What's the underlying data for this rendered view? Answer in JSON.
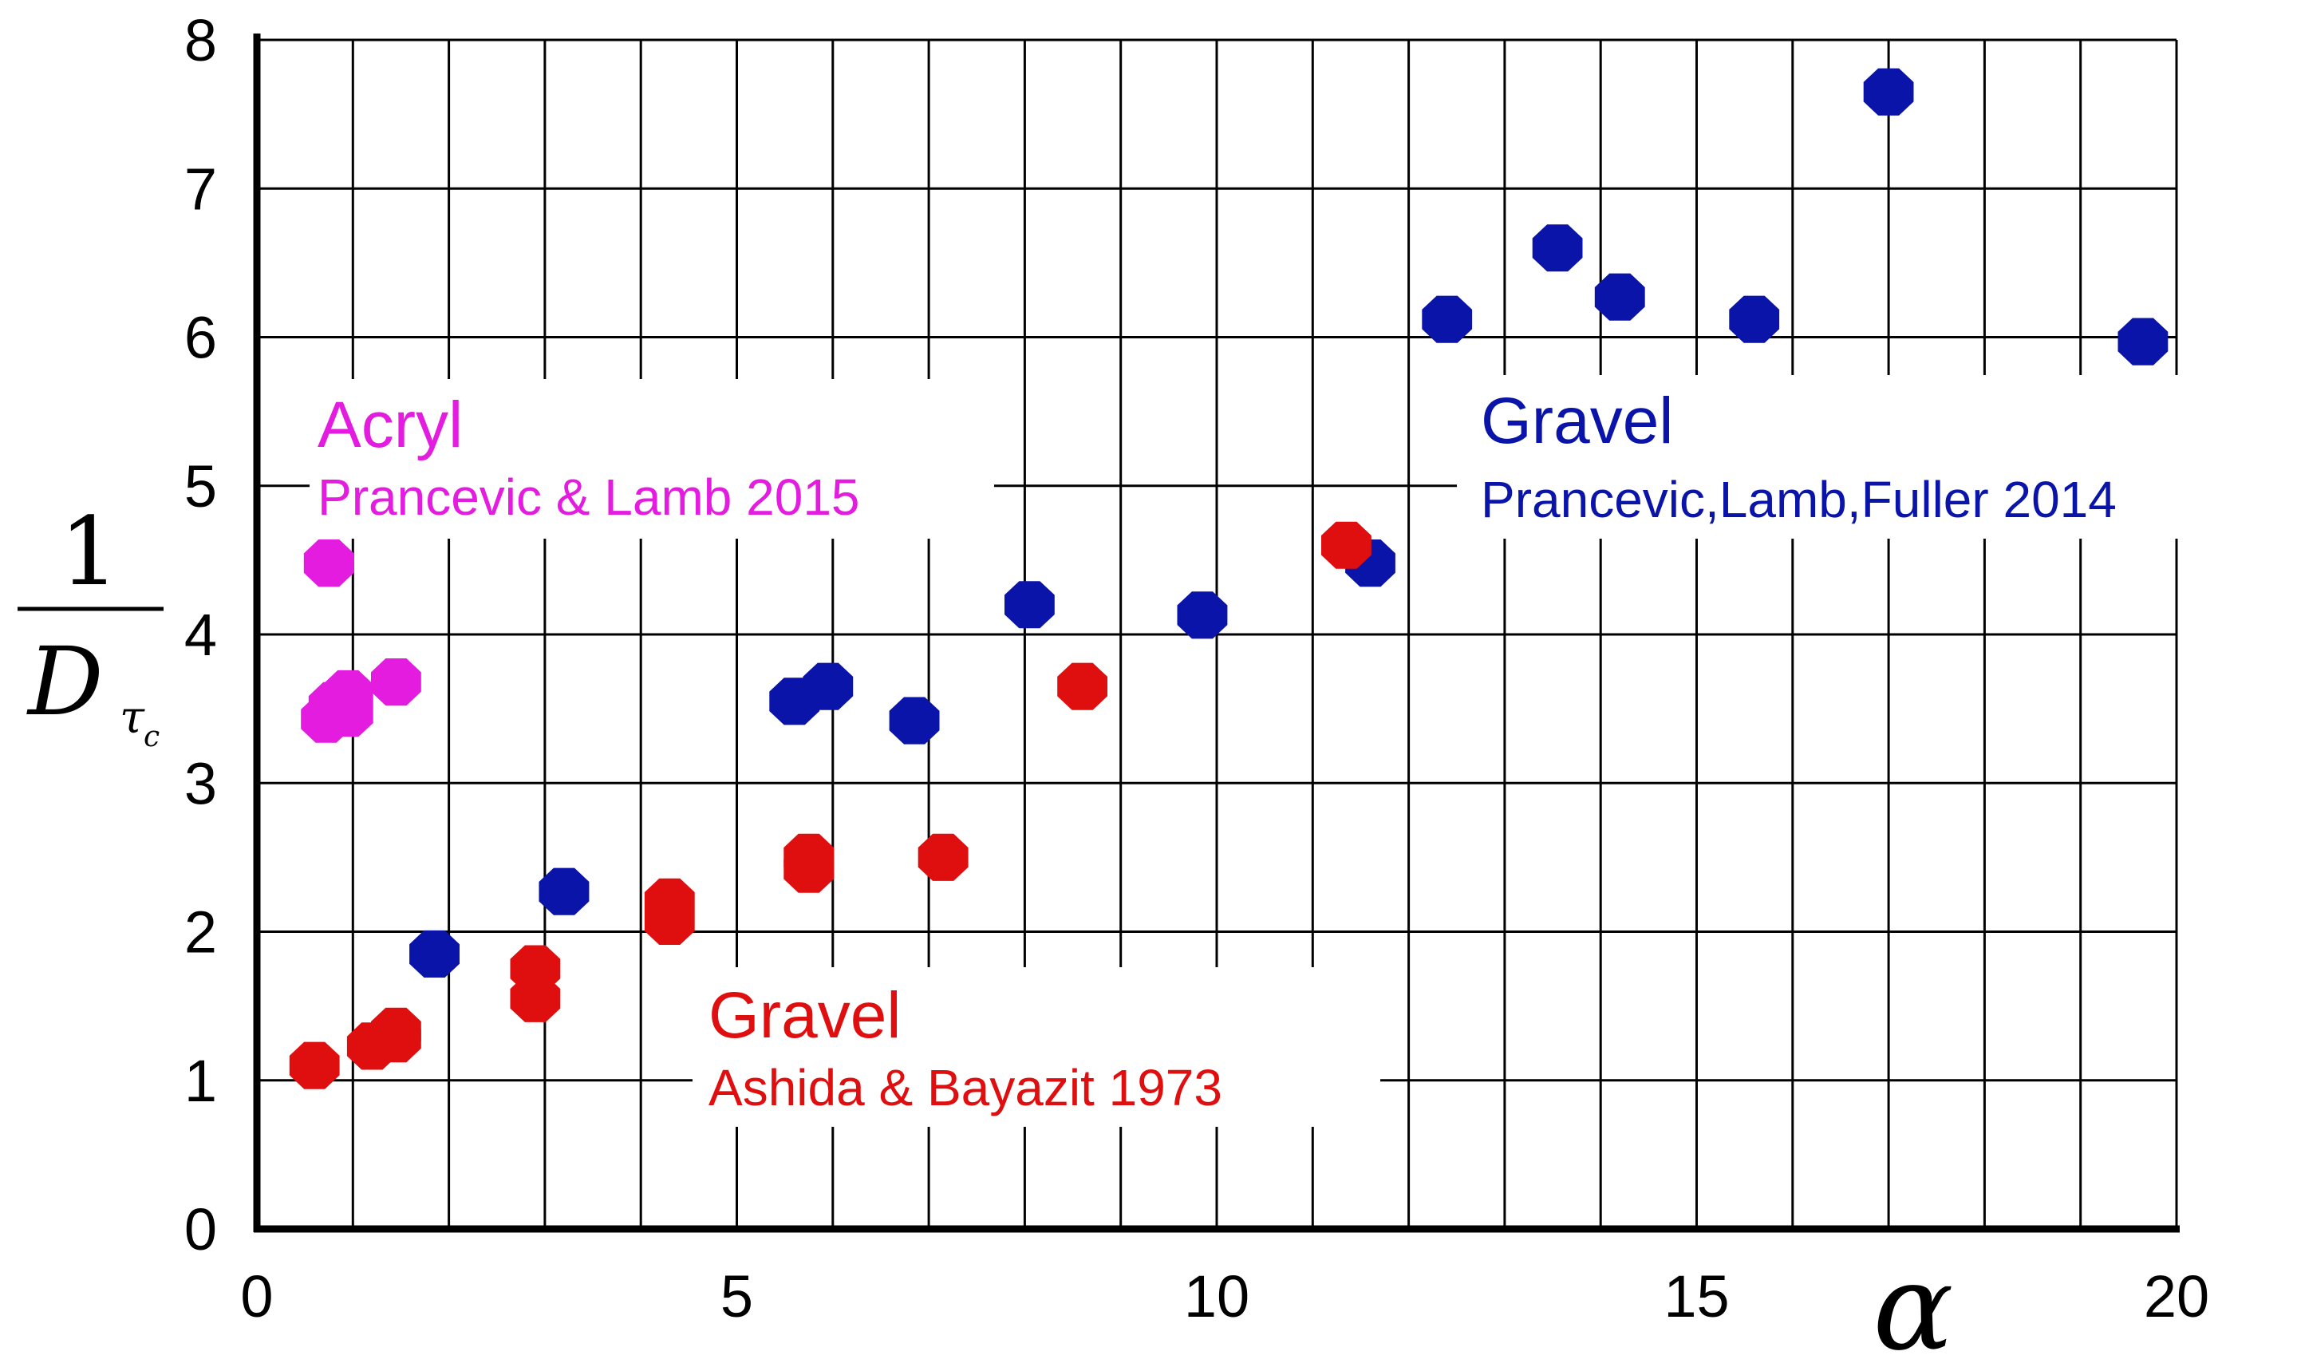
{
  "chart_data": {
    "type": "scatter",
    "title": "",
    "xlabel": "α",
    "ylabel": {
      "numerator": "1",
      "denominator": "D",
      "subscript": "τ",
      "subsubscript": "c"
    },
    "xlim": [
      0,
      20
    ],
    "ylim": [
      0,
      8
    ],
    "x_ticks": [
      0,
      5,
      10,
      15,
      20
    ],
    "y_ticks": [
      0,
      1,
      2,
      3,
      4,
      5,
      6,
      7,
      8
    ],
    "x_gridlines": [
      0,
      1,
      2,
      3,
      4,
      5,
      6,
      7,
      8,
      9,
      10,
      11,
      12,
      13,
      14,
      15,
      16,
      17,
      18,
      19,
      20
    ],
    "y_gridlines": [
      0,
      1,
      2,
      3,
      4,
      5,
      6,
      7,
      8
    ],
    "grid": true,
    "series": [
      {
        "material": "Acryl",
        "source": "Prancevic & Lamb 2015",
        "color": "#e41ce0",
        "points": [
          {
            "x": 0.75,
            "y": 4.48
          },
          {
            "x": 0.72,
            "y": 3.43
          },
          {
            "x": 0.8,
            "y": 3.52
          },
          {
            "x": 0.95,
            "y": 3.47
          },
          {
            "x": 0.95,
            "y": 3.6
          },
          {
            "x": 1.45,
            "y": 3.68
          }
        ]
      },
      {
        "material": "Gravel",
        "source": "Ashida & Bayazit 1973",
        "color": "#e00f0f",
        "points": [
          {
            "x": 0.6,
            "y": 1.1
          },
          {
            "x": 1.2,
            "y": 1.23
          },
          {
            "x": 1.45,
            "y": 1.28
          },
          {
            "x": 1.45,
            "y": 1.33
          },
          {
            "x": 2.9,
            "y": 1.55
          },
          {
            "x": 2.9,
            "y": 1.75
          },
          {
            "x": 4.3,
            "y": 2.07
          },
          {
            "x": 4.3,
            "y": 2.2
          },
          {
            "x": 5.75,
            "y": 2.42
          },
          {
            "x": 5.75,
            "y": 2.5
          },
          {
            "x": 7.15,
            "y": 2.5
          },
          {
            "x": 8.6,
            "y": 3.65
          },
          {
            "x": 11.35,
            "y": 4.6
          }
        ]
      },
      {
        "material": "Gravel",
        "source": "Prancevic,Lamb,Fuller 2014",
        "color": "#0b14a8",
        "points": [
          {
            "x": 1.85,
            "y": 1.85
          },
          {
            "x": 3.2,
            "y": 2.27
          },
          {
            "x": 5.6,
            "y": 3.55
          },
          {
            "x": 5.95,
            "y": 3.65
          },
          {
            "x": 6.85,
            "y": 3.42
          },
          {
            "x": 8.05,
            "y": 4.2
          },
          {
            "x": 9.85,
            "y": 4.13
          },
          {
            "x": 11.6,
            "y": 4.48
          },
          {
            "x": 12.4,
            "y": 6.12
          },
          {
            "x": 13.55,
            "y": 6.6
          },
          {
            "x": 14.2,
            "y": 6.27
          },
          {
            "x": 15.6,
            "y": 6.12
          },
          {
            "x": 17.0,
            "y": 7.65
          },
          {
            "x": 19.65,
            "y": 5.97
          }
        ]
      }
    ]
  }
}
